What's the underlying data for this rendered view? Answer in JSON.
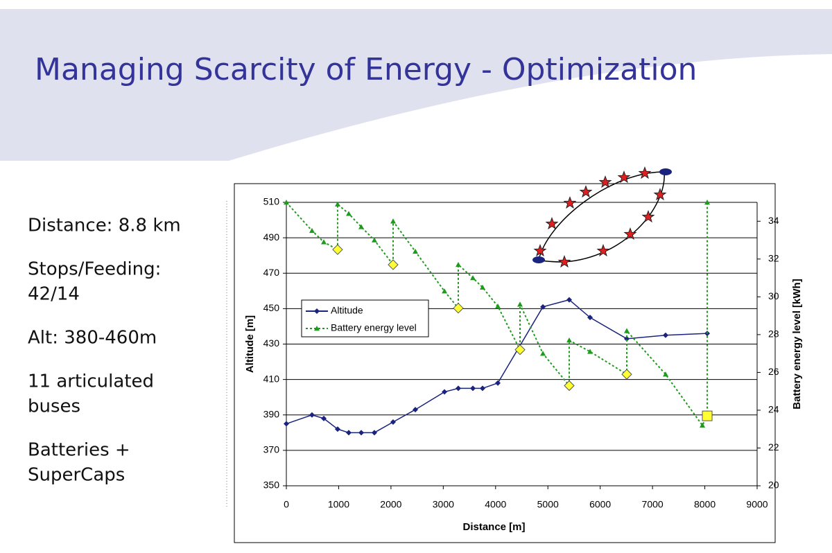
{
  "slide": {
    "title": "Managing Scarcity of Energy - Optimization",
    "bullets": [
      [
        "Distance: 8.8 km"
      ],
      [
        "Stops/Feeding:",
        "42/14"
      ],
      [
        "Alt: 380-460m"
      ],
      [
        "11 articulated",
        "buses"
      ],
      [
        "Batteries +",
        "SuperCaps"
      ]
    ]
  },
  "chart_data": {
    "type": "line",
    "xlabel": "Distance [m]",
    "ylabel": "Altitude [m]",
    "y2label": "Battery energy level [kWh]",
    "xlim": [
      0,
      9000
    ],
    "xticks": [
      0,
      1000,
      2000,
      3000,
      4000,
      5000,
      6000,
      7000,
      8000,
      9000
    ],
    "ylim": [
      350,
      510
    ],
    "yticks": [
      350,
      370,
      390,
      410,
      430,
      450,
      470,
      490,
      510
    ],
    "y2lim": [
      20,
      35
    ],
    "y2ticks": [
      20,
      22,
      24,
      26,
      28,
      30,
      32,
      34
    ],
    "grid": true,
    "legend": "left",
    "series": [
      {
        "name": "Altitude",
        "color": "#1a237e",
        "marker": "diamond",
        "dash": false,
        "x": [
          0,
          490,
          716,
          980,
          1193,
          1432,
          1683,
          2041,
          2466,
          3023,
          3287,
          3566,
          3751,
          4043,
          4905,
          5408,
          5806,
          6508,
          7250,
          8046
        ],
        "values": [
          385,
          390,
          388,
          382,
          380,
          380,
          380,
          386,
          393,
          403,
          405,
          405,
          405,
          408,
          451,
          455,
          445,
          433,
          435,
          436
        ]
      },
      {
        "name": "Battery energy level",
        "color": "#1f9a1f",
        "marker": "triangle",
        "dash": true,
        "axis": "y2",
        "x": [
          0,
          490,
          716,
          980,
          980,
          1193,
          1432,
          1683,
          2041,
          2041,
          2466,
          3023,
          3287,
          3287,
          3566,
          3751,
          4043,
          4467,
          4467,
          4905,
          5408,
          5408,
          5806,
          6508,
          6508,
          7250,
          7953,
          8046,
          8046
        ],
        "values": [
          35.0,
          33.5,
          32.9,
          32.5,
          34.9,
          34.4,
          33.7,
          33.0,
          31.7,
          34.0,
          32.4,
          30.3,
          29.4,
          31.7,
          31.0,
          30.5,
          29.5,
          27.2,
          29.6,
          27.0,
          25.3,
          27.7,
          27.1,
          25.9,
          28.2,
          25.9,
          23.2,
          23.7,
          35.0
        ]
      }
    ],
    "feeding_points": {
      "color": "#ffff33",
      "axis": "y2",
      "x": [
        980,
        2041,
        3287,
        4467,
        5408,
        6508,
        8046
      ],
      "values": [
        32.5,
        31.7,
        29.4,
        27.2,
        25.3,
        25.9,
        23.7
      ],
      "marker": [
        "diamond",
        "diamond",
        "diamond",
        "diamond",
        "diamond",
        "diamond",
        "square"
      ]
    }
  }
}
